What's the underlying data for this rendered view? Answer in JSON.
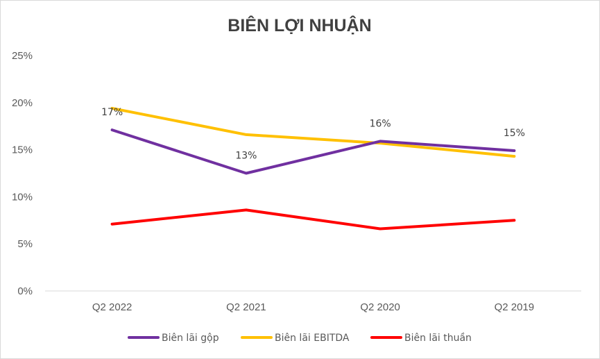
{
  "chart_data": {
    "type": "line",
    "title": "BIÊN LỢI NHUẬN",
    "categories": [
      "Q2 2022",
      "Q2 2021",
      "Q2 2020",
      "Q2 2019"
    ],
    "y_ticks": [
      "0%",
      "5%",
      "10%",
      "15%",
      "20%",
      "25%"
    ],
    "ylim": [
      0,
      25
    ],
    "grid": false,
    "legend_position": "bottom",
    "series": [
      {
        "name": "Biên lãi gộp",
        "color": "#7030A0",
        "values": [
          17.1,
          12.5,
          15.9,
          14.9
        ],
        "data_labels": [
          "17%",
          "13%",
          "16%",
          "15%"
        ]
      },
      {
        "name": "Biên lãi EBITDA",
        "color": "#FFC000",
        "values": [
          19.4,
          16.6,
          15.7,
          14.3
        ]
      },
      {
        "name": "Biên lãi thuần",
        "color": "#FF0000",
        "values": [
          7.1,
          8.6,
          6.6,
          7.5
        ]
      }
    ]
  }
}
